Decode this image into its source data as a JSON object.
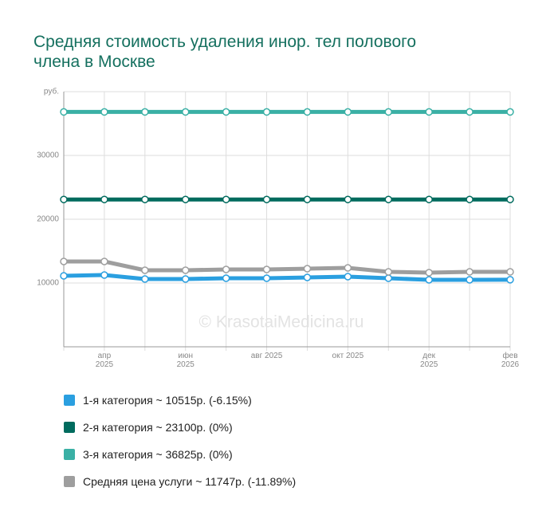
{
  "chart_data": {
    "type": "line",
    "title": "Средняя стоимость удаления инор. тел полового члена в Москве",
    "watermark": "© KrasotaiMedicina.ru",
    "categories": [
      null,
      "апр 2025",
      null,
      "июн 2025",
      null,
      "авг 2025",
      null,
      "окт 2025",
      null,
      "дек 2025",
      null,
      "фев 2026"
    ],
    "series": [
      {
        "name": "1-я категория ~ 10515р. (-6.15%)",
        "color": "#2a9fe0",
        "values": [
          11125,
          11250,
          10625,
          10625,
          10750,
          10750,
          10875,
          11000,
          10750,
          10500,
          10500,
          10515
        ]
      },
      {
        "name": "2-я категория ~ 23100р. (0%)",
        "color": "#006b5e",
        "values": [
          23100,
          23100,
          23100,
          23100,
          23100,
          23100,
          23100,
          23100,
          23100,
          23100,
          23100,
          23100
        ]
      },
      {
        "name": "3-я категория ~ 36825р. (0%)",
        "color": "#3ab0a5",
        "values": [
          36825,
          36825,
          36825,
          36825,
          36825,
          36825,
          36825,
          36825,
          36825,
          36825,
          36825,
          36825
        ]
      },
      {
        "name": "Средняя цена услуги ~ 11747р. (-11.89%)",
        "color": "#9e9e9e",
        "values": [
          13375,
          13375,
          12000,
          12000,
          12125,
          12125,
          12250,
          12375,
          11750,
          11625,
          11750,
          11747
        ]
      }
    ],
    "ylim": [
      0,
      40000
    ],
    "yticks": [
      10000,
      20000,
      30000,
      {
        "value": 40000,
        "label": "руб."
      }
    ],
    "grid": true
  }
}
